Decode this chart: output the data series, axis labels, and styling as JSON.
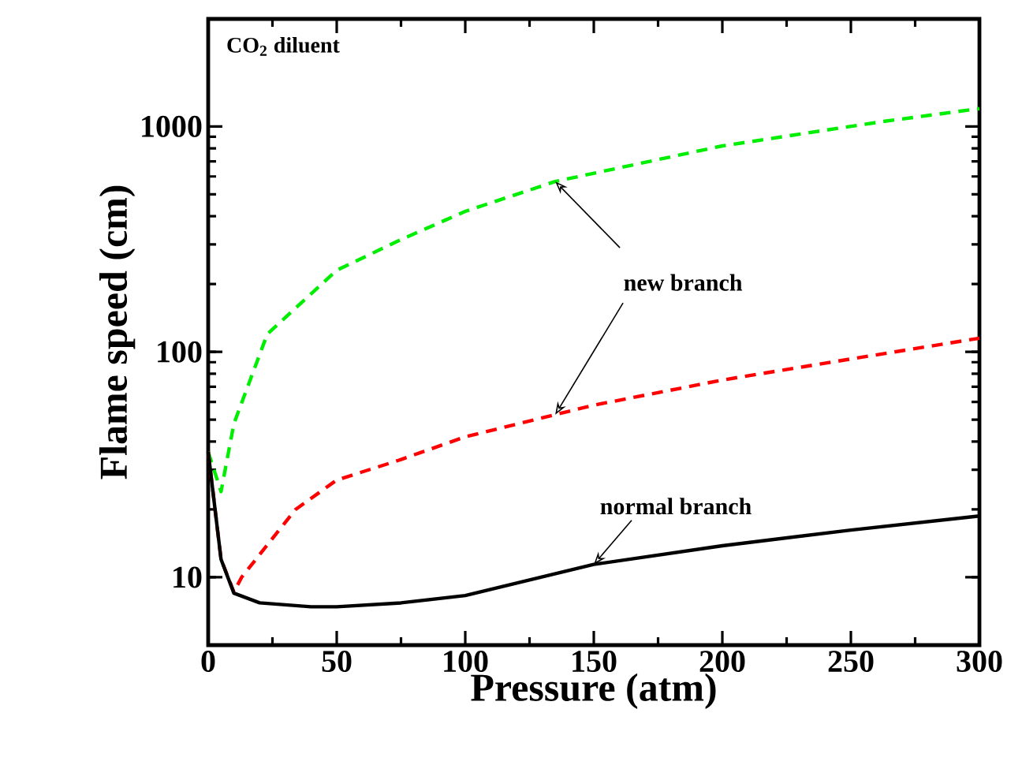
{
  "chart_data": {
    "type": "line",
    "xlabel": "Pressure (atm)",
    "ylabel": "Flame speed (cm)",
    "log": "y",
    "xlim": [
      0,
      300
    ],
    "ylim": [
      5,
      3000
    ],
    "xticks": [
      0,
      50,
      100,
      150,
      200,
      250,
      300
    ],
    "yticks": [
      10,
      100,
      1000
    ],
    "grid": false,
    "marker": "none",
    "annotations": [
      "CO$_{2}$ diluent",
      {
        "text": "new branch",
        "x": 135,
        "y": 570
      },
      {
        "text": "normal branch",
        "x": 150,
        "y": 11.4
      }
    ],
    "series": [
      {
        "color": "#00ee00",
        "line_style": "dashed",
        "x": [
          0,
          5,
          10,
          23,
          50,
          75,
          100,
          135,
          200,
          262,
          300
        ],
        "values": [
          36,
          24,
          48,
          120,
          230,
          315,
          420,
          570,
          820,
          1050,
          1200
        ]
      },
      {
        "color": "#ff0000",
        "line_style": "dashed",
        "x": [
          0,
          5,
          10,
          13,
          34,
          50,
          74,
          100,
          150,
          200,
          250,
          300
        ],
        "values": [
          36,
          12,
          8.6,
          10,
          20,
          27,
          33,
          42,
          58,
          75,
          93,
          115
        ]
      },
      {
        "color": "#000000",
        "line_style": "solid",
        "x": [
          0,
          5,
          10,
          20,
          40,
          50,
          75,
          100,
          150,
          200,
          250,
          300
        ],
        "values": [
          36,
          12,
          8.5,
          7.7,
          7.4,
          7.4,
          7.7,
          8.3,
          11.4,
          13.8,
          16.2,
          18.7
        ]
      }
    ]
  }
}
